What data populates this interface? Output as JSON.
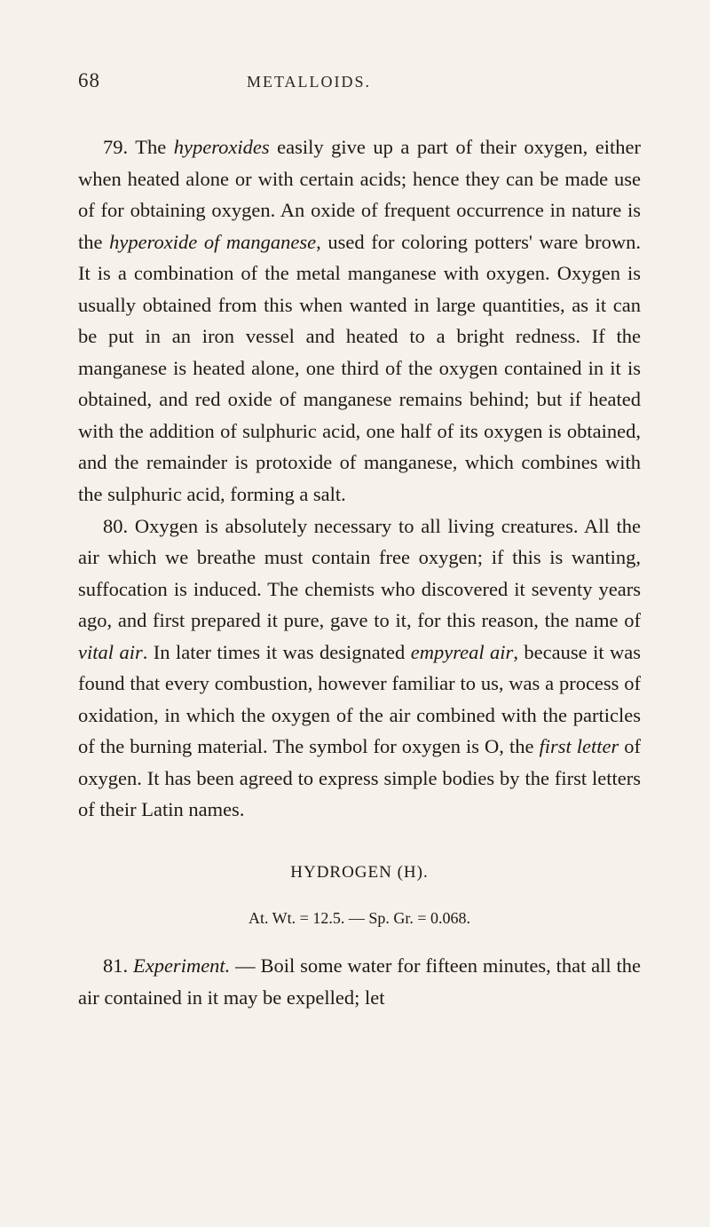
{
  "page": {
    "number": "68",
    "chapter": "METALLOIDS."
  },
  "paragraphs": {
    "p79_prefix": "79. The ",
    "p79_italic1": "hyperoxides",
    "p79_text1": " easily give up a part of their oxygen, either when heated alone or with certain acids; hence they can be made use of for obtaining oxygen. An oxide of frequent occurrence in nature is the ",
    "p79_italic2": "hyperoxide of manganese",
    "p79_text2": ", used for coloring potters' ware brown. It is a combination of the metal manganese with oxygen. Oxygen is usually obtained from this when wanted in large quantities, as it can be put in an iron vessel and heated to a bright redness. If the manganese is heated alone, one third of the oxygen contained in it is obtained, and red oxide of manganese remains behind; but if heated with the addition of sulphuric acid, one half of its oxygen is obtained, and the remainder is protoxide of manganese, which combines with the sulphuric acid, forming a salt.",
    "p80_text1": "80. Oxygen is absolutely necessary to all living creatures. All the air which we breathe must contain free oxygen; if this is wanting, suffocation is induced. The chemists who discovered it seventy years ago, and first prepared it pure, gave to it, for this reason, the name of ",
    "p80_italic1": "vital air",
    "p80_text2": ". In later times it was designated ",
    "p80_italic2": "empyreal air",
    "p80_text3": ", because it was found that every combustion, however familiar to us, was a process of oxidation, in which the oxygen of the air combined with the particles of the burning material. The symbol for oxygen is O, the ",
    "p80_italic3": "first letter",
    "p80_text4": " of oxygen. It has been agreed to express simple bodies by the first letters of their Latin names.",
    "p81_prefix": "81. ",
    "p81_italic1": "Experiment.",
    "p81_text1": " — Boil some water for fifteen minutes, that all the air contained in it may be expelled; let"
  },
  "hydrogen": {
    "title": "HYDROGEN (H).",
    "formula": "At. Wt. = 12.5. — Sp. Gr. = 0.068."
  },
  "colors": {
    "page_bg": "#f4f2ea",
    "text": "#1e1a14"
  }
}
